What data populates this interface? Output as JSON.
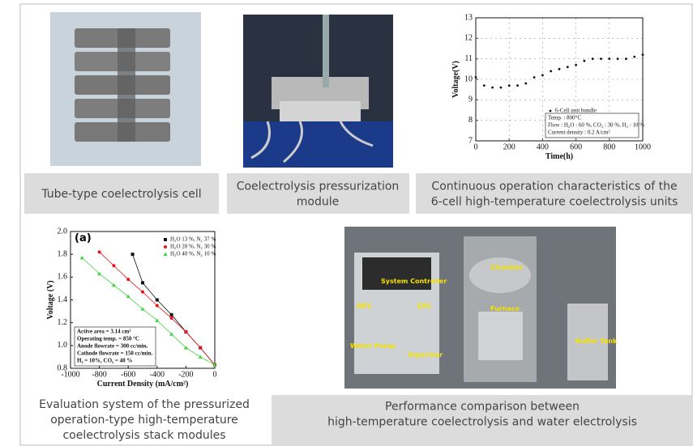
{
  "captions": [
    {
      "lines": [
        "Tube-type coelectrolysis cell"
      ]
    },
    {
      "lines": [
        "Coelectrolysis pressurization",
        "module"
      ]
    },
    {
      "lines": [
        "Continuous operation characteristics of the",
        "6-cell high-temperature coelectrolysis units"
      ]
    },
    {
      "lines": [
        "Evaluation system of the pressurized",
        "operation-type high-temperature",
        "coelectrolysis stack modules"
      ]
    },
    {
      "lines": [
        "Performance comparison between",
        "high-temperature coelectrolysis and water electrolysis"
      ]
    }
  ],
  "photo_labels": [
    "Chamber",
    "System Controller",
    "MFC",
    "EPC",
    "Furnace",
    "Water Pump",
    "Vaporizer",
    "Buffer Tank"
  ],
  "voltage_chart": {
    "type": "scatter",
    "x_label": "Time(h)",
    "y_label": "Voltage(V)",
    "xlim": [
      0,
      1000
    ],
    "xticks": [
      0,
      200,
      400,
      600,
      800,
      1000
    ],
    "ylim": [
      7,
      13
    ],
    "yticks": [
      7,
      8,
      9,
      10,
      11,
      12,
      13
    ],
    "grid": true,
    "series": [
      {
        "name": "6-Cell unit bundle",
        "color": "#111111",
        "x": [
          0,
          50,
          100,
          150,
          200,
          250,
          300,
          350,
          400,
          450,
          500,
          550,
          600,
          650,
          700,
          750,
          800,
          850,
          900,
          950,
          1000
        ],
        "values": [
          10.1,
          9.7,
          9.6,
          9.6,
          9.7,
          9.7,
          9.8,
          10.1,
          10.2,
          10.4,
          10.5,
          10.6,
          10.7,
          10.9,
          11.0,
          11.0,
          11.0,
          11.0,
          11.0,
          11.1,
          11.2
        ]
      }
    ],
    "notes": [
      "Temp. : 800°C",
      "Flow : H₂O : 60 %, CO₂ : 30 %, H₂ : 10 %",
      "Current density : 0.2 A/cm²"
    ]
  },
  "polarization_chart": {
    "type": "line",
    "panel_label": "(a)",
    "x_label": "Current Density (mA/cm²)",
    "y_label": "Voltage (V)",
    "xlim": [
      -1000,
      0
    ],
    "xticks": [
      -1000,
      -800,
      -600,
      -400,
      -200,
      0
    ],
    "ylim": [
      0.8,
      2.0
    ],
    "yticks": [
      0.8,
      {
        "value": 1,
        "label": "1.0"
      },
      1.2,
      1.4,
      1.6,
      1.8,
      {
        "value": 2,
        "label": "2.0"
      }
    ],
    "series": [
      {
        "name": "H₂O 13 %, N₂ 37 %",
        "color": "#111111",
        "marker": "square",
        "x": [
          -570,
          -500,
          -400,
          -300,
          -200,
          -100,
          0
        ],
        "values": [
          1.8,
          1.55,
          1.4,
          1.27,
          1.12,
          0.98,
          0.83
        ]
      },
      {
        "name": "H₂O 20 %, N₂ 30 %",
        "color": "#e8141c",
        "marker": "circle",
        "x": [
          -800,
          -700,
          -600,
          -500,
          -400,
          -300,
          -200,
          -100,
          0
        ],
        "values": [
          1.82,
          1.7,
          1.58,
          1.47,
          1.35,
          1.24,
          1.12,
          0.98,
          0.83
        ]
      },
      {
        "name": "H₂O 40 %, N₂ 10 %",
        "color": "#3ed43e",
        "marker": "triangle",
        "x": [
          -920,
          -800,
          -700,
          -600,
          -500,
          -400,
          -300,
          -200,
          -100,
          0
        ],
        "values": [
          1.77,
          1.63,
          1.53,
          1.43,
          1.32,
          1.22,
          1.1,
          0.98,
          0.9,
          0.83
        ]
      }
    ],
    "notes": [
      "Active area = 3.14 cm²",
      "Operating temp. = 850 °C",
      "Anode flowrate = 300 cc/min.",
      "Cathode flowrate = 150 cc/min.",
      "H₂ = 10%, CO₂ = 40 %"
    ]
  }
}
